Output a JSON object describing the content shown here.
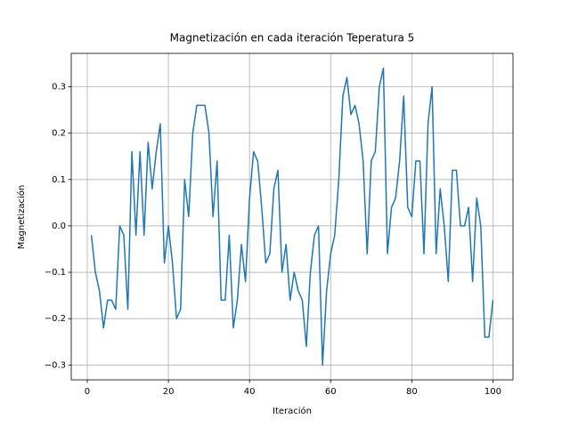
{
  "chart_data": {
    "type": "line",
    "title": "Magnetización en cada iteración Teperatura 5",
    "x_label": "Iteración",
    "y_label": "Magnetización",
    "x": [
      1,
      2,
      3,
      4,
      5,
      6,
      7,
      8,
      9,
      10,
      11,
      12,
      13,
      14,
      15,
      16,
      17,
      18,
      19,
      20,
      21,
      22,
      23,
      24,
      25,
      26,
      27,
      28,
      29,
      30,
      31,
      32,
      33,
      34,
      35,
      36,
      37,
      38,
      39,
      40,
      41,
      42,
      43,
      44,
      45,
      46,
      47,
      48,
      49,
      50,
      51,
      52,
      53,
      54,
      55,
      56,
      57,
      58,
      59,
      60,
      61,
      62,
      63,
      64,
      65,
      66,
      67,
      68,
      69,
      70,
      71,
      72,
      73,
      74,
      75,
      76,
      77,
      78,
      79,
      80,
      81,
      82,
      83,
      84,
      85,
      86,
      87,
      88,
      89,
      90,
      91,
      92,
      93,
      94,
      95,
      96,
      97,
      98,
      99,
      100
    ],
    "series": [
      {
        "color": "#1f77b4",
        "values": [
          -0.02,
          -0.1,
          -0.14,
          -0.22,
          -0.16,
          -0.16,
          -0.18,
          0.0,
          -0.02,
          -0.18,
          0.16,
          -0.02,
          0.16,
          -0.02,
          0.18,
          0.08,
          0.16,
          0.22,
          -0.08,
          0.0,
          -0.08,
          -0.2,
          -0.18,
          0.1,
          0.02,
          0.2,
          0.26,
          0.26,
          0.26,
          0.2,
          0.02,
          0.14,
          -0.16,
          -0.16,
          -0.02,
          -0.22,
          -0.16,
          -0.04,
          -0.12,
          0.06,
          0.16,
          0.14,
          0.04,
          -0.08,
          -0.06,
          0.08,
          0.12,
          -0.1,
          -0.04,
          -0.16,
          -0.1,
          -0.14,
          -0.16,
          -0.26,
          -0.1,
          -0.02,
          0.0,
          -0.3,
          -0.14,
          -0.06,
          -0.02,
          0.1,
          0.28,
          0.32,
          0.24,
          0.26,
          0.22,
          0.14,
          -0.06,
          0.14,
          0.16,
          0.3,
          0.34,
          -0.06,
          0.04,
          0.06,
          0.14,
          0.28,
          0.04,
          0.02,
          0.14,
          0.14,
          -0.06,
          0.22,
          0.3,
          -0.06,
          0.08,
          0.0,
          -0.12,
          0.12,
          0.12,
          0.0,
          0.0,
          0.04,
          -0.12,
          0.06,
          0.0,
          -0.24,
          -0.24,
          -0.16
        ]
      }
    ],
    "xlim": [
      -3.95,
      104.95
    ],
    "ylim": [
      -0.332,
      0.372
    ],
    "xticks": [
      0,
      20,
      40,
      60,
      80,
      100
    ],
    "yticks": [
      {
        "value": -0.3,
        "label": "−0.3"
      },
      {
        "value": -0.2,
        "label": "−0.2"
      },
      {
        "value": -0.1,
        "label": "−0.1"
      },
      {
        "value": 0.0,
        "label": "0.0"
      },
      0.1,
      0.2,
      0.3
    ],
    "grid": true
  }
}
